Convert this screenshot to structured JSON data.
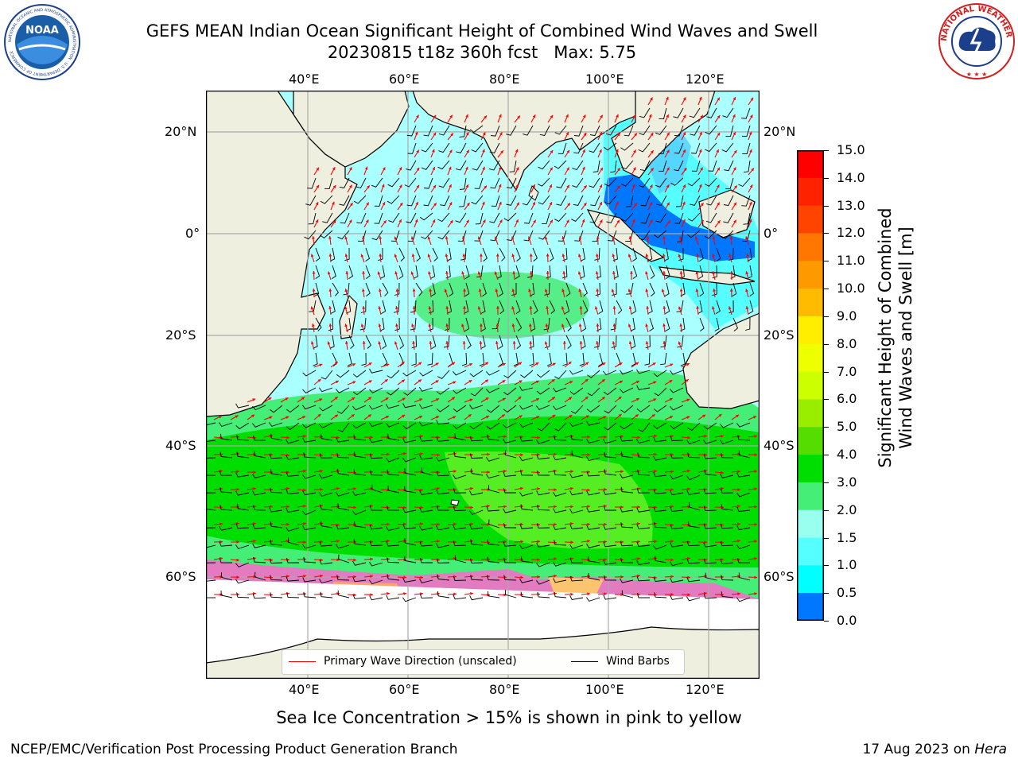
{
  "header": {
    "title_line1": "GEFS MEAN Indian Ocean Significant Height of Combined Wind Waves and Swell",
    "title_line2": "20230815 t18z 360h fcst   Max: 5.75"
  },
  "logos": {
    "left_logo_text": "NOAA",
    "left_logo_ring_text": "NATIONAL OCEANIC AND ATMOSPHERIC ADMINISTRATION · U.S. DEPARTMENT OF COMMERCE",
    "right_logo_ring_text": "NATIONAL WEATHER SERVICE"
  },
  "map": {
    "lon_labels": [
      "40°E",
      "60°E",
      "80°E",
      "100°E",
      "120°E"
    ],
    "lat_labels": [
      "20°N",
      "0°",
      "20°S",
      "40°S",
      "60°S"
    ],
    "legend": {
      "primary_wave_direction": "Primary Wave Direction (unscaled)",
      "wind_barbs": "Wind Barbs"
    }
  },
  "colorbar": {
    "label_line1": "Significant Height of Combined",
    "label_line2": "Wind Waves and Swell [m]",
    "ticks": [
      "15.0",
      "14.0",
      "13.0",
      "12.0",
      "11.0",
      "10.0",
      "9.0",
      "8.0",
      "7.0",
      "6.0",
      "5.0",
      "4.0",
      "3.0",
      "2.0",
      "1.5",
      "1.0",
      "0.5",
      "0.0"
    ],
    "colors": [
      "#ff0000",
      "#ff2200",
      "#ff4400",
      "#ff7700",
      "#ff9900",
      "#ffbb00",
      "#ffee00",
      "#eeff00",
      "#ccff00",
      "#99ee00",
      "#55dd00",
      "#00dd00",
      "#44ee77",
      "#99ffee",
      "#55ffff",
      "#00ffff",
      "#0077ff",
      "#0000ff"
    ]
  },
  "caption": "Sea Ice Concentration > 15% is shown in pink to yellow",
  "footer": {
    "left": "NCEP/EMC/Verification Post Processing Product Generation Branch",
    "right_date": "17 Aug 2023 on",
    "right_host": "Hera"
  }
}
